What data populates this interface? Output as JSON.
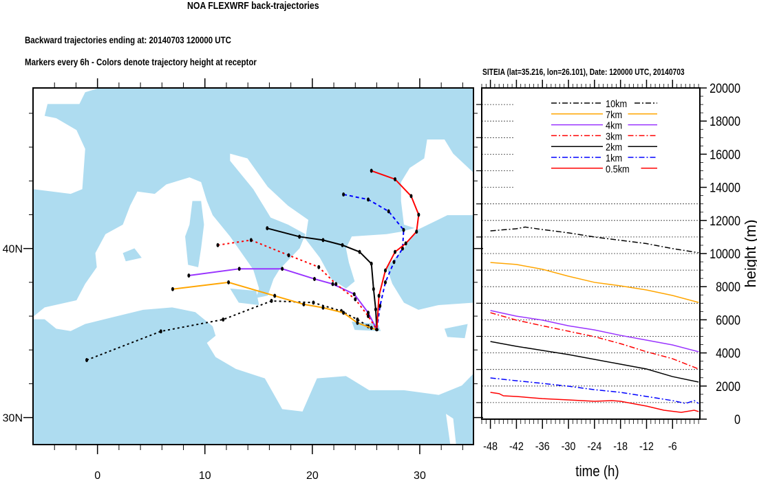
{
  "title": "NOA FLEXWRF back-trajectories",
  "subtitle1": "Backward trajectories ending at: 20140703  120000 UTC",
  "subtitle2": "Markers every 6h - Colors denote trajectory height at receptor",
  "chart_data": [
    {
      "type": "line",
      "kind": "map-trajectories",
      "xlim": [
        -6,
        35
      ],
      "ylim": [
        28.4,
        49.5
      ],
      "x_ticks": [
        0,
        10,
        20,
        30
      ],
      "x_tick_labels": [
        "0",
        "10",
        "20",
        "30"
      ],
      "y_ticks": [
        30,
        40
      ],
      "y_tick_labels": [
        "30N",
        "40N"
      ],
      "land_color": "#aedcf0",
      "sea_color": "#ffffff",
      "receptor": {
        "lon": 26.0,
        "lat": 35.2
      },
      "series": [
        {
          "name": "10km",
          "color": "#000000",
          "dash": "dot",
          "points": [
            [
              -1.0,
              33.4
            ],
            [
              5.9,
              35.1
            ],
            [
              11.7,
              35.8
            ],
            [
              16.2,
              36.9
            ],
            [
              20.1,
              36.8
            ],
            [
              22.7,
              36.3
            ],
            [
              24.2,
              35.8
            ],
            [
              25.2,
              35.4
            ],
            [
              26.0,
              35.2
            ]
          ]
        },
        {
          "name": "7km",
          "color": "#ffa500",
          "dash": "solid",
          "points": [
            [
              7.0,
              37.6
            ],
            [
              12.2,
              38.0
            ],
            [
              16.5,
              37.2
            ],
            [
              19.2,
              36.7
            ],
            [
              21.0,
              36.5
            ],
            [
              22.9,
              36.2
            ],
            [
              24.2,
              35.6
            ],
            [
              25.5,
              35.3
            ],
            [
              26.0,
              35.2
            ]
          ]
        },
        {
          "name": "4km",
          "color": "#9933ff",
          "dash": "solid",
          "points": [
            [
              8.5,
              38.4
            ],
            [
              13.2,
              38.8
            ],
            [
              17.2,
              38.8
            ],
            [
              20.2,
              38.2
            ],
            [
              21.9,
              37.9
            ],
            [
              23.9,
              37.3
            ],
            [
              25.2,
              36.2
            ],
            [
              26.0,
              35.2
            ]
          ]
        },
        {
          "name": "3km",
          "color": "#ff0000",
          "dash": "dot",
          "points": [
            [
              11.2,
              40.2
            ],
            [
              14.3,
              40.5
            ],
            [
              17.8,
              39.6
            ],
            [
              20.6,
              38.9
            ],
            [
              22.2,
              37.9
            ],
            [
              24.0,
              37.0
            ],
            [
              25.2,
              36.0
            ],
            [
              26.0,
              35.2
            ]
          ]
        },
        {
          "name": "2km",
          "color": "#000000",
          "dash": "solid",
          "points": [
            [
              15.8,
              41.2
            ],
            [
              18.8,
              40.7
            ],
            [
              21.0,
              40.5
            ],
            [
              22.8,
              40.2
            ],
            [
              24.4,
              39.8
            ],
            [
              25.5,
              39.1
            ],
            [
              25.7,
              37.6
            ],
            [
              25.9,
              36.4
            ],
            [
              26.0,
              35.2
            ]
          ]
        },
        {
          "name": "1km",
          "color": "#0000ff",
          "dash": "dash",
          "points": [
            [
              22.9,
              43.2
            ],
            [
              25.2,
              42.9
            ],
            [
              27.1,
              42.2
            ],
            [
              28.5,
              41.1
            ],
            [
              28.4,
              40.0
            ],
            [
              27.6,
              39.2
            ],
            [
              26.8,
              38.0
            ],
            [
              26.3,
              36.6
            ],
            [
              26.0,
              35.2
            ]
          ]
        },
        {
          "name": "0.5km",
          "color": "#ff0000",
          "dash": "solid",
          "points": [
            [
              25.5,
              44.6
            ],
            [
              27.7,
              44.1
            ],
            [
              29.2,
              43.1
            ],
            [
              29.9,
              42.0
            ],
            [
              29.7,
              41.0
            ],
            [
              28.7,
              40.3
            ],
            [
              27.7,
              39.8
            ],
            [
              26.8,
              38.7
            ],
            [
              26.2,
              37.2
            ],
            [
              26.0,
              35.2
            ]
          ]
        }
      ]
    },
    {
      "type": "line",
      "title": "SITEIA (lat=35.216,  lon=26.101), Date: 120000 UTC, 20140703",
      "xlabel": "time (h)",
      "ylabel": "height (m)",
      "xlim": [
        -50,
        0.3
      ],
      "ylim": [
        0,
        20000
      ],
      "x_ticks": [
        -48,
        -42,
        -36,
        -30,
        -24,
        -18,
        -12,
        -6
      ],
      "y_ticks": [
        0,
        2000,
        4000,
        6000,
        8000,
        10000,
        12000,
        14000,
        16000,
        18000,
        20000
      ],
      "grid": "dotted horizontal every 1000",
      "legend": "top-center",
      "series": [
        {
          "name": "10km",
          "color": "#000000",
          "dash": "dashdot",
          "t": [
            -48,
            -42,
            -40,
            -36,
            -30,
            -24,
            -18,
            -12,
            -6,
            0
          ],
          "h": [
            11370,
            11500,
            11600,
            11450,
            11250,
            11000,
            10800,
            10600,
            10300,
            10050
          ]
        },
        {
          "name": "7km",
          "color": "#ffa500",
          "dash": "solid",
          "t": [
            -48,
            -42,
            -36,
            -30,
            -24,
            -18,
            -12,
            -6,
            0
          ],
          "h": [
            9460,
            9340,
            9050,
            8630,
            8260,
            8050,
            7800,
            7470,
            7050
          ]
        },
        {
          "name": "4km",
          "color": "#9933ff",
          "dash": "solid",
          "t": [
            -48,
            -42,
            -36,
            -30,
            -24,
            -18,
            -12,
            -6,
            0
          ],
          "h": [
            6560,
            6220,
            5980,
            5640,
            5390,
            5060,
            4770,
            4480,
            4070
          ]
        },
        {
          "name": "3km",
          "color": "#ff0000",
          "dash": "dashdot",
          "t": [
            -48,
            -42,
            -36,
            -30,
            -24,
            -18,
            -12,
            -6,
            0
          ],
          "h": [
            6430,
            5980,
            5640,
            5310,
            4980,
            4560,
            4070,
            3650,
            3030
          ]
        },
        {
          "name": "2km",
          "color": "#000000",
          "dash": "solid",
          "t": [
            -48,
            -42,
            -36,
            -30,
            -24,
            -18,
            -12,
            -6,
            0
          ],
          "h": [
            4690,
            4400,
            4150,
            3900,
            3610,
            3320,
            3030,
            2570,
            2240
          ]
        },
        {
          "name": "1km",
          "color": "#0000ff",
          "dash": "dashdot",
          "t": [
            -48,
            -42,
            -36,
            -30,
            -24,
            -18,
            -12,
            -6,
            -3,
            -1,
            0
          ],
          "h": [
            2490,
            2320,
            2160,
            1990,
            1780,
            1620,
            1370,
            1120,
            950,
            1120,
            950
          ]
        },
        {
          "name": "0.5km",
          "color": "#ff0000",
          "dash": "solid",
          "t": [
            -48,
            -46,
            -45,
            -42,
            -36,
            -30,
            -24,
            -20,
            -18,
            -12,
            -8,
            -4,
            -1,
            0
          ],
          "h": [
            1620,
            1540,
            1410,
            1370,
            1240,
            1160,
            1080,
            1120,
            1080,
            790,
            540,
            410,
            540,
            460
          ]
        }
      ]
    }
  ]
}
